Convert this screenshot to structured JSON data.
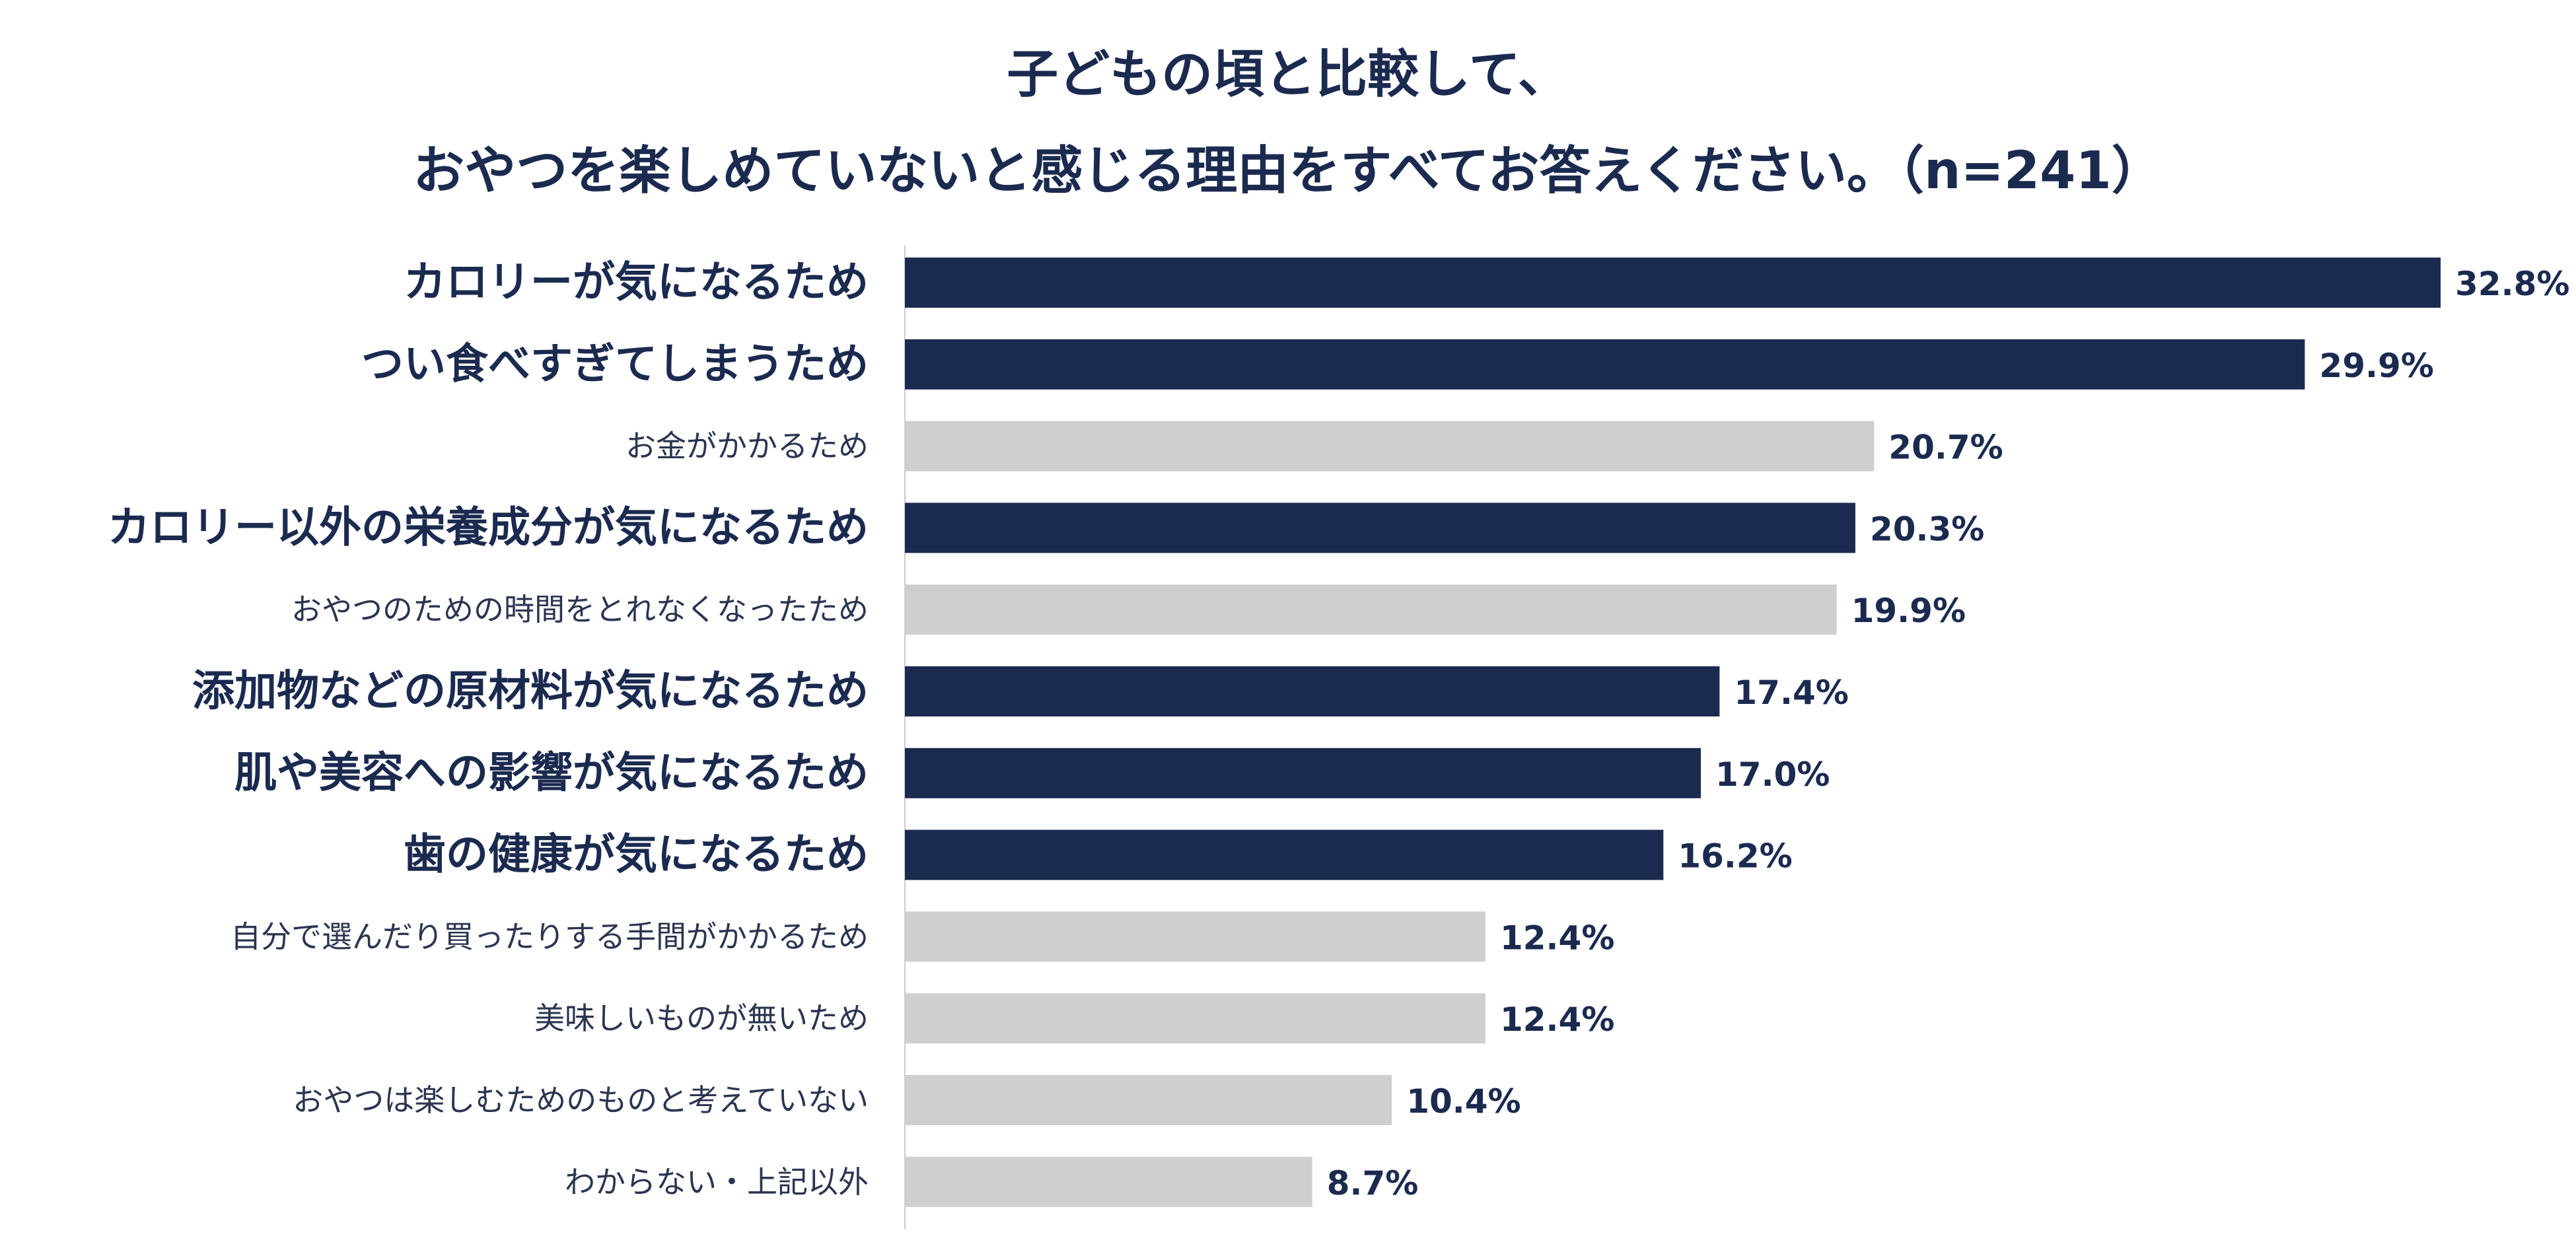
{
  "chart_data": {
    "type": "bar",
    "orientation": "horizontal",
    "title_lines": [
      "子どもの頃と比較して、",
      "おやつを楽しめていないと感じる理由をすべてお答えください。（n=241）"
    ],
    "categories": [
      "カロリーが気になるため",
      "つい食べすぎてしまうため",
      "お金がかかるため",
      "カロリー以外の栄養成分が気になるため",
      "おやつのための時間をとれなくなったため",
      "添加物などの原材料が気になるため",
      "肌や美容への影響が気になるため",
      "歯の健康が気になるため",
      "自分で選んだり買ったりする手間がかかるため",
      "美味しいものが無いため",
      "おやつは楽しむためのものと考えていない",
      "わからない・上記以外"
    ],
    "values": [
      32.8,
      29.9,
      20.7,
      20.3,
      19.9,
      17.4,
      17.0,
      16.2,
      12.4,
      12.4,
      10.4,
      8.7
    ],
    "value_labels": [
      "32.8%",
      "29.9%",
      "20.7%",
      "20.3%",
      "19.9%",
      "17.4%",
      "17.0%",
      "16.2%",
      "12.4%",
      "12.4%",
      "10.4%",
      "8.7%"
    ],
    "highlighted": [
      true,
      true,
      false,
      true,
      false,
      true,
      true,
      true,
      false,
      false,
      false,
      false
    ],
    "colors": {
      "highlight": "#1b2a4f",
      "normal": "#d0cfcd",
      "highlight_text": "#1b2a4f",
      "normal_text": "#2b3550",
      "axis": "#cccccc"
    },
    "xlim": [
      0,
      32.8
    ],
    "grid": false,
    "legend": "none"
  }
}
